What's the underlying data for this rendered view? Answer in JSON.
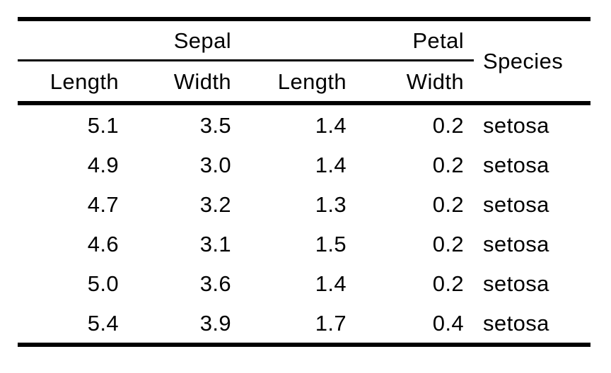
{
  "chart_data": {
    "type": "table",
    "column_groups": [
      {
        "label": "Sepal",
        "span": 2
      },
      {
        "label": "Petal",
        "span": 2
      }
    ],
    "columns": [
      "Length",
      "Width",
      "Length",
      "Width",
      "Species"
    ],
    "rows": [
      [
        "5.1",
        "3.5",
        "1.4",
        "0.2",
        "setosa"
      ],
      [
        "4.9",
        "3.0",
        "1.4",
        "0.2",
        "setosa"
      ],
      [
        "4.7",
        "3.2",
        "1.3",
        "0.2",
        "setosa"
      ],
      [
        "4.6",
        "3.1",
        "1.5",
        "0.2",
        "setosa"
      ],
      [
        "5.0",
        "3.6",
        "1.4",
        "0.2",
        "setosa"
      ],
      [
        "5.4",
        "3.9",
        "1.7",
        "0.4",
        "setosa"
      ]
    ]
  },
  "colors": {
    "text": "#000000",
    "background": "#ffffff",
    "rule": "#000000"
  }
}
